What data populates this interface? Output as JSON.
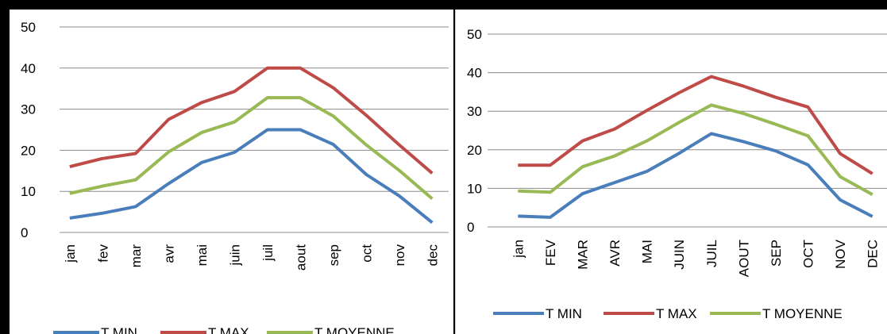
{
  "chart_data": [
    {
      "type": "line",
      "categories": [
        "jan",
        "fev",
        "mar",
        "avr",
        "mai",
        "juin",
        "juil",
        "aout",
        "sep",
        "oct",
        "nov",
        "dec"
      ],
      "ylim": [
        0,
        50
      ],
      "yticks": [
        0,
        10,
        20,
        30,
        40,
        50
      ],
      "grid": true,
      "legend": "bottom",
      "series": [
        {
          "name": "T MIN",
          "color": "#4a7ebb",
          "values": [
            3.5,
            4.7,
            6.3,
            11.9,
            17,
            19.5,
            25,
            25,
            21.4,
            14.1,
            8.9,
            2.4
          ]
        },
        {
          "name": "T MAX",
          "color": "#be4b48",
          "values": [
            16,
            18,
            19.2,
            27.5,
            31.6,
            34.3,
            40,
            40,
            35.2,
            28.5,
            21.3,
            14.4
          ]
        },
        {
          "name": "T MOYENNE",
          "color": "#98b954",
          "values": [
            9.5,
            11.3,
            12.8,
            19.6,
            24.3,
            26.9,
            32.8,
            32.8,
            28.3,
            21.3,
            15.1,
            8.2
          ]
        }
      ]
    },
    {
      "type": "line",
      "categories": [
        "jan",
        "FEV",
        "MAR",
        "AVR",
        "MAI",
        "JUIN",
        "JUIL",
        "AOUT",
        "SEP",
        "OCT",
        "NOV",
        "DEC"
      ],
      "ylim": [
        0,
        50
      ],
      "yticks": [
        0,
        10,
        20,
        30,
        40,
        50
      ],
      "grid": true,
      "legend": "bottom",
      "series": [
        {
          "name": "T MIN",
          "color": "#4a7ebb",
          "values": [
            2.8,
            2.5,
            8.6,
            11.5,
            14.4,
            19.1,
            24.2,
            22.1,
            19.7,
            16.1,
            7,
            2.7
          ]
        },
        {
          "name": "T MAX",
          "color": "#be4b48",
          "values": [
            16,
            16,
            22.3,
            25.4,
            30.2,
            34.8,
            39,
            36.5,
            33.6,
            31.1,
            19,
            13.8
          ]
        },
        {
          "name": "T MOYENNE",
          "color": "#98b954",
          "values": [
            9.3,
            9,
            15.6,
            18.4,
            22.3,
            27.1,
            31.6,
            29.4,
            26.6,
            23.6,
            13,
            8.4
          ]
        }
      ]
    }
  ]
}
